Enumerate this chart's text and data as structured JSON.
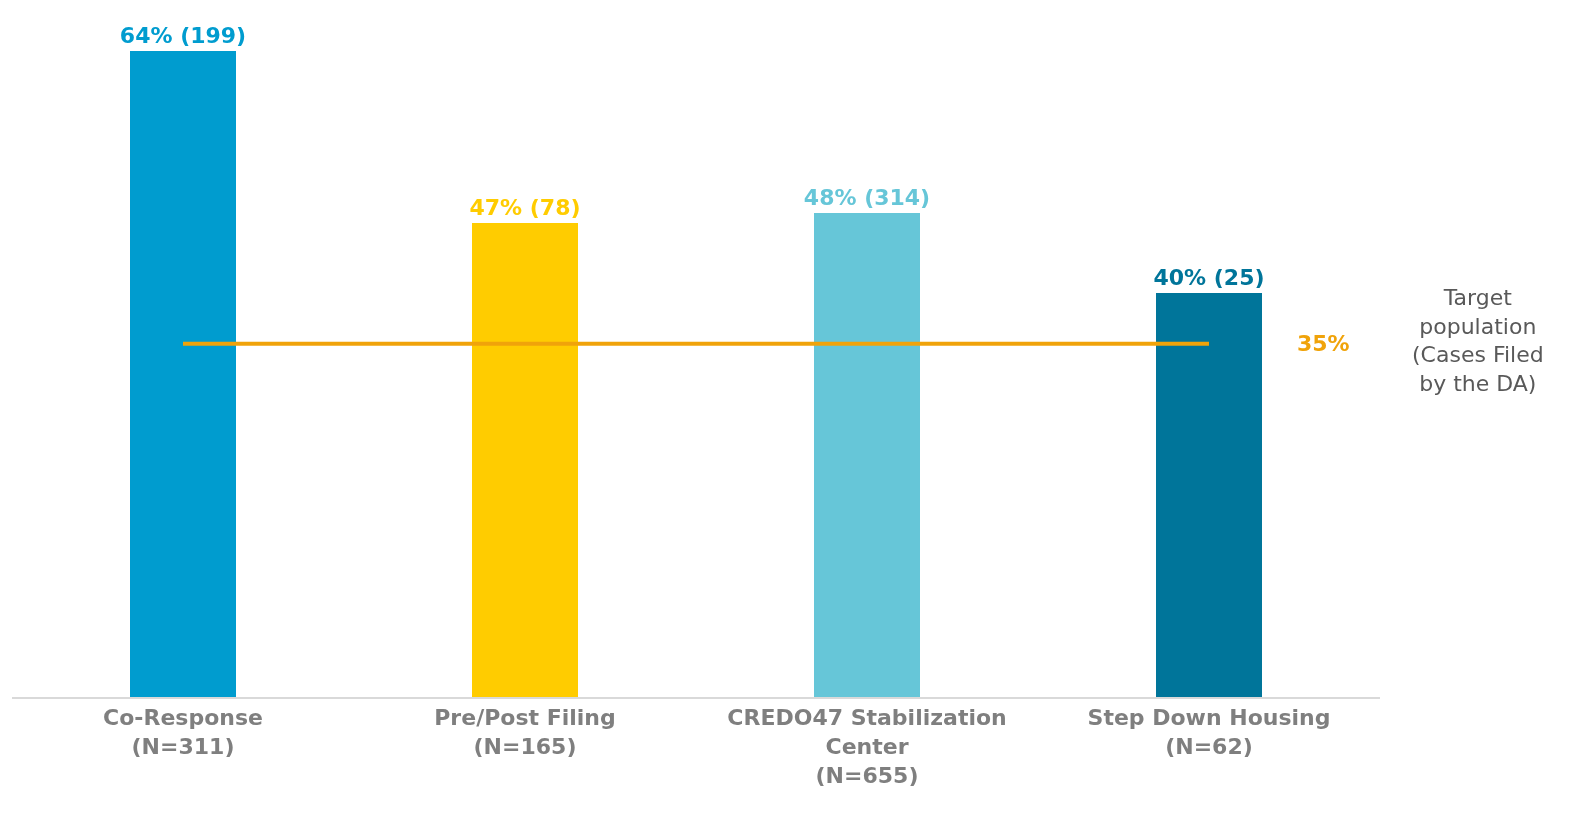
{
  "chart_data": {
    "type": "bar",
    "categories": [
      "Co-Response\n(N=311)",
      "Pre/Post Filing\n(N=165)",
      "CREDO47 Stabilization\nCenter\n(N=655)",
      "Step Down Housing\n(N=62)"
    ],
    "values": [
      64,
      47,
      48,
      40
    ],
    "colors": [
      "#009ccf",
      "#ffcc00",
      "#66c6d8",
      "#00759a"
    ],
    "value_labels": [
      "64% (199)",
      "47% (78)",
      "48% (314)",
      "40% (25)"
    ],
    "ref_lines": [
      {
        "axis": "y",
        "value": 35,
        "label": "35%",
        "color": "#f0a30a",
        "line_style": "solid"
      }
    ],
    "annotations": [
      "Target\npopulation\n(Cases Filed\nby the DA)"
    ],
    "legend": false
  }
}
